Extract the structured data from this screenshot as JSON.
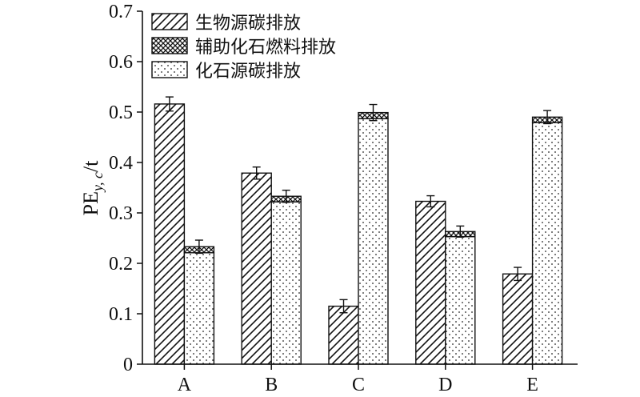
{
  "chart_data": {
    "type": "bar",
    "title": "",
    "xlabel": "",
    "ylabel": {
      "main": "PE",
      "sub": "y, c",
      "unit": "/t"
    },
    "ylim": [
      0,
      0.7
    ],
    "yticks": [
      "0",
      "0.1",
      "0.2",
      "0.3",
      "0.4",
      "0.5",
      "0.6",
      "0.7"
    ],
    "categories": [
      "A",
      "B",
      "C",
      "D",
      "E"
    ],
    "legend_position": "top-left",
    "grid": false,
    "series": [
      {
        "name": "生物源碳排放",
        "pattern": "diagonal-hatch",
        "values": [
          0.516,
          0.379,
          0.115,
          0.323,
          0.179
        ],
        "errors": [
          0.014,
          0.012,
          0.013,
          0.011,
          0.013
        ]
      },
      {
        "name": "辅助化石燃料排放",
        "pattern": "cross-hatch",
        "values": [
          0.012,
          0.011,
          0.012,
          0.01,
          0.011
        ],
        "errors": [
          0.013,
          0.012,
          0.016,
          0.011,
          0.013
        ]
      },
      {
        "name": "化石源碳排放",
        "pattern": "dots",
        "values": [
          0.221,
          0.322,
          0.487,
          0.253,
          0.479
        ],
        "errors": [
          0,
          0,
          0,
          0,
          0
        ]
      }
    ]
  }
}
